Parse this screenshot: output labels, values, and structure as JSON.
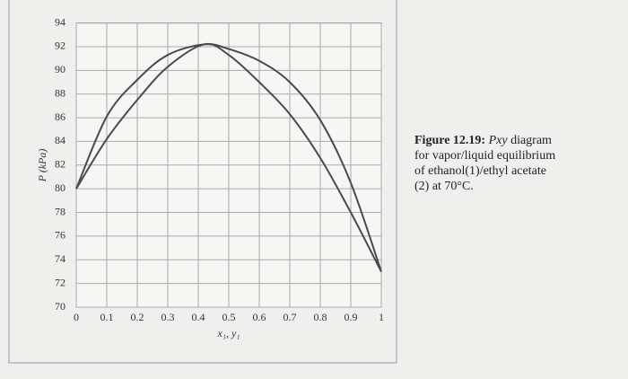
{
  "chart_data": {
    "type": "line",
    "ylabel": "P (kPa)",
    "xlabel": "x₁, y₁",
    "caption": {
      "label": "Figure 12.19:",
      "italic": "Pxy",
      "lines": [
        "diagram",
        "for vapor/liquid equilibrium",
        "of ethanol(1)/ethyl acetate",
        "(2) at 70°C."
      ]
    },
    "x": [
      0,
      0.1,
      0.2,
      0.3,
      0.42,
      0.5,
      0.6,
      0.7,
      0.8,
      0.9,
      1
    ],
    "series": [
      {
        "color": "#4a4a4a",
        "values": [
          80.0,
          86.1,
          89.2,
          91.3,
          92.2,
          91.8,
          90.8,
          89.0,
          85.8,
          80.5,
          73.0
        ]
      },
      {
        "color": "#4a4a4a",
        "values": [
          80.0,
          84.2,
          87.5,
          90.3,
          92.2,
          91.3,
          89.0,
          86.3,
          82.6,
          78.0,
          73.0
        ]
      }
    ],
    "xlim": [
      0,
      1
    ],
    "xticks": [
      0,
      0.1,
      0.2,
      0.3,
      0.4,
      0.5,
      0.6,
      0.7,
      0.8,
      0.9,
      1
    ],
    "ylim": [
      70,
      94
    ],
    "yticks": [
      70,
      72,
      74,
      76,
      78,
      80,
      82,
      84,
      86,
      88,
      90,
      92,
      94
    ],
    "grid": true
  }
}
